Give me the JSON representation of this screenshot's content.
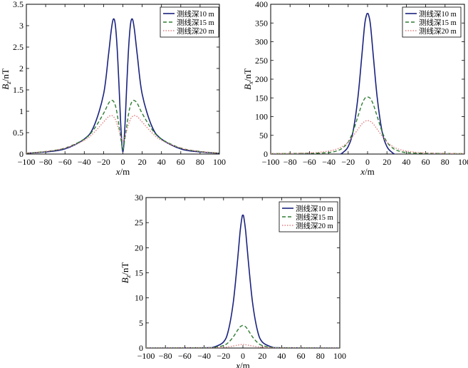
{
  "chart_data": [
    {
      "type": "line",
      "xlabel_var": "x",
      "xlabel_unit": "/m",
      "ylabel_var": "B",
      "ylabel_sub": "z",
      "ylabel_unit": "/nT",
      "xlim": [
        -100,
        100
      ],
      "ylim": [
        0,
        3.5
      ],
      "xticks": [
        -100,
        -80,
        -60,
        -40,
        -20,
        0,
        20,
        40,
        60,
        80,
        100
      ],
      "xtick_labels": [
        "−100",
        "−80",
        "−60",
        "−40",
        "−20",
        "0",
        "20",
        "40",
        "60",
        "80",
        "100"
      ],
      "yticks": [
        0,
        0.5,
        1,
        1.5,
        2,
        2.5,
        3,
        3.5
      ],
      "ytick_labels": [
        "0",
        "0.5",
        "1",
        "1.5",
        "2",
        "2.5",
        "3",
        "3.5"
      ],
      "legend_position": "top-right",
      "series": [
        {
          "name": "测线深10 m",
          "color": "#1a237e",
          "dash": "solid",
          "x": [
            -100,
            -80,
            -60,
            -40,
            -30,
            -20,
            -15,
            -12,
            -10,
            -8,
            -6,
            -4,
            -2,
            0,
            2,
            4,
            6,
            8,
            10,
            12,
            15,
            20,
            30,
            40,
            60,
            80,
            100
          ],
          "y": [
            0.02,
            0.05,
            0.12,
            0.35,
            0.65,
            1.4,
            2.3,
            2.9,
            3.15,
            3.05,
            2.5,
            1.6,
            0.6,
            0.05,
            0.6,
            1.6,
            2.5,
            3.05,
            3.15,
            2.9,
            2.3,
            1.4,
            0.65,
            0.35,
            0.12,
            0.05,
            0.02
          ]
        },
        {
          "name": "测线深15 m",
          "color": "#2e7d32",
          "dash": "dashed",
          "x": [
            -100,
            -80,
            -60,
            -40,
            -30,
            -20,
            -15,
            -12,
            -10,
            -8,
            -6,
            -4,
            -2,
            0,
            2,
            4,
            6,
            8,
            10,
            12,
            15,
            20,
            30,
            40,
            60,
            80,
            100
          ],
          "y": [
            0.02,
            0.06,
            0.14,
            0.35,
            0.58,
            0.95,
            1.18,
            1.25,
            1.24,
            1.15,
            0.95,
            0.65,
            0.35,
            0.1,
            0.35,
            0.65,
            0.95,
            1.15,
            1.24,
            1.25,
            1.18,
            0.95,
            0.58,
            0.35,
            0.14,
            0.06,
            0.02
          ]
        },
        {
          "name": "测线深20 m",
          "color": "#e08080",
          "dash": "dotted",
          "x": [
            -100,
            -80,
            -60,
            -40,
            -30,
            -20,
            -15,
            -12,
            -10,
            -8,
            -6,
            -4,
            -2,
            0,
            2,
            4,
            6,
            8,
            10,
            12,
            15,
            20,
            30,
            40,
            60,
            80,
            100
          ],
          "y": [
            0.02,
            0.06,
            0.14,
            0.32,
            0.5,
            0.75,
            0.87,
            0.9,
            0.88,
            0.82,
            0.7,
            0.55,
            0.4,
            0.3,
            0.4,
            0.55,
            0.7,
            0.82,
            0.88,
            0.9,
            0.87,
            0.75,
            0.5,
            0.32,
            0.14,
            0.06,
            0.02
          ]
        }
      ]
    },
    {
      "type": "line",
      "xlabel_var": "x",
      "xlabel_unit": "/m",
      "ylabel_var": "B",
      "ylabel_sub": "x",
      "ylabel_unit": "/nT",
      "xlim": [
        -100,
        100
      ],
      "ylim": [
        0,
        400
      ],
      "xticks": [
        -100,
        -80,
        -60,
        -40,
        -20,
        0,
        20,
        40,
        60,
        80,
        100
      ],
      "xtick_labels": [
        "−100",
        "−80",
        "−60",
        "−40",
        "−20",
        "0",
        "20",
        "40",
        "60",
        "80",
        "100"
      ],
      "yticks": [
        0,
        50,
        100,
        150,
        200,
        250,
        300,
        350,
        400
      ],
      "ytick_labels": [
        "0",
        "50",
        "100",
        "150",
        "200",
        "250",
        "300",
        "350",
        "400"
      ],
      "legend_position": "top-right",
      "series": [
        {
          "name": "测线深10 m",
          "color": "#1a237e",
          "dash": "solid",
          "x": [
            -100,
            -60,
            -40,
            -30,
            -25,
            -20,
            -15,
            -10,
            -6,
            -3,
            -1,
            0,
            1,
            3,
            6,
            10,
            15,
            20,
            25,
            30,
            40,
            60,
            100
          ],
          "y": [
            0,
            -1,
            -3,
            -2,
            5,
            20,
            60,
            150,
            260,
            345,
            372,
            375,
            372,
            345,
            260,
            150,
            60,
            20,
            5,
            -2,
            -3,
            -1,
            0
          ]
        },
        {
          "name": "测线深15 m",
          "color": "#2e7d32",
          "dash": "dashed",
          "x": [
            -100,
            -60,
            -40,
            -30,
            -25,
            -20,
            -15,
            -10,
            -6,
            -3,
            -1,
            0,
            1,
            3,
            6,
            10,
            15,
            20,
            25,
            30,
            40,
            60,
            100
          ],
          "y": [
            1,
            2,
            4,
            10,
            18,
            32,
            60,
            100,
            132,
            148,
            152,
            152,
            152,
            148,
            132,
            100,
            60,
            32,
            18,
            10,
            4,
            2,
            1
          ]
        },
        {
          "name": "测线深20 m",
          "color": "#e08080",
          "dash": "dotted",
          "x": [
            -100,
            -60,
            -40,
            -30,
            -25,
            -20,
            -15,
            -10,
            -6,
            -3,
            -1,
            0,
            1,
            3,
            6,
            10,
            15,
            20,
            25,
            30,
            40,
            60,
            100
          ],
          "y": [
            1,
            3,
            8,
            15,
            22,
            32,
            48,
            66,
            80,
            87,
            89,
            89,
            89,
            87,
            80,
            66,
            48,
            32,
            22,
            15,
            8,
            3,
            1
          ]
        }
      ]
    },
    {
      "type": "line",
      "xlabel_var": "x",
      "xlabel_unit": "/m",
      "ylabel_var": "B",
      "ylabel_sub": "z",
      "ylabel_unit": "/nT",
      "xlim": [
        -100,
        100
      ],
      "ylim": [
        0,
        30
      ],
      "xticks": [
        -100,
        -80,
        -60,
        -40,
        -20,
        0,
        20,
        40,
        60,
        80,
        100
      ],
      "xtick_labels": [
        "−100",
        "−80",
        "−60",
        "−40",
        "−20",
        "0",
        "20",
        "40",
        "60",
        "80",
        "100"
      ],
      "yticks": [
        0,
        5,
        10,
        15,
        20,
        25,
        30
      ],
      "ytick_labels": [
        "0",
        "5",
        "10",
        "15",
        "20",
        "25",
        "30"
      ],
      "legend_position": "top-right",
      "series": [
        {
          "name": "测线深10 m",
          "color": "#1a237e",
          "dash": "solid",
          "x": [
            -100,
            -40,
            -30,
            -20,
            -15,
            -10,
            -6,
            -3,
            -1,
            0,
            1,
            3,
            6,
            10,
            15,
            20,
            30,
            40,
            100
          ],
          "y": [
            0,
            0.05,
            0.2,
            1.2,
            3.5,
            9,
            16.5,
            23,
            26,
            26.5,
            26,
            23,
            16.5,
            9,
            3.5,
            1.2,
            0.2,
            0.05,
            0
          ]
        },
        {
          "name": "测线深15 m",
          "color": "#2e7d32",
          "dash": "dashed",
          "x": [
            -100,
            -40,
            -30,
            -20,
            -15,
            -10,
            -6,
            -3,
            -1,
            0,
            1,
            3,
            6,
            10,
            15,
            20,
            30,
            40,
            100
          ],
          "y": [
            0,
            0.05,
            0.12,
            0.5,
            1.1,
            2.2,
            3.4,
            4.2,
            4.45,
            4.5,
            4.45,
            4.2,
            3.4,
            2.2,
            1.1,
            0.5,
            0.12,
            0.05,
            0
          ]
        },
        {
          "name": "测线深20 m",
          "color": "#e08080",
          "dash": "dotted",
          "x": [
            -100,
            -40,
            -30,
            -20,
            -15,
            -10,
            -6,
            -3,
            -1,
            0,
            1,
            3,
            6,
            10,
            15,
            20,
            30,
            40,
            100
          ],
          "y": [
            0,
            0.03,
            0.06,
            0.15,
            0.25,
            0.4,
            0.55,
            0.65,
            0.7,
            0.7,
            0.7,
            0.65,
            0.55,
            0.4,
            0.25,
            0.15,
            0.06,
            0.03,
            0
          ]
        }
      ]
    }
  ]
}
